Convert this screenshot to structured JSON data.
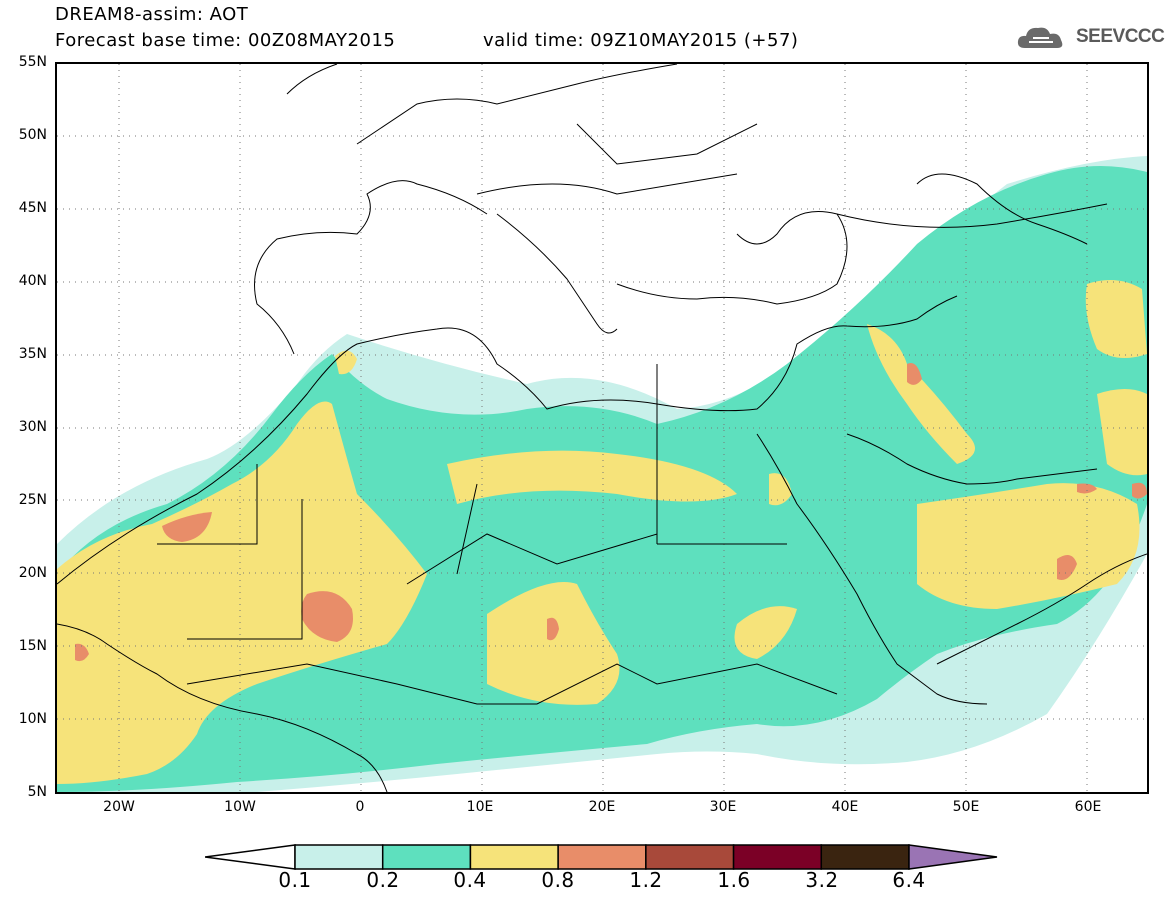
{
  "header": {
    "title": "DREAM8-assim: AOT",
    "base_time": "Forecast base time: 00Z08MAY2015",
    "valid_time": "valid time: 09Z10MAY2015 (+57)"
  },
  "logo": {
    "text": "SEEVCCC",
    "icon": "cloud-icon"
  },
  "map": {
    "projection": "lat-lon",
    "lon_range": [
      -25,
      65
    ],
    "lat_range": [
      5,
      55
    ],
    "lat_labels": [
      "55N",
      "50N",
      "45N",
      "40N",
      "35N",
      "30N",
      "25N",
      "20N",
      "15N",
      "10N",
      "5N"
    ],
    "lon_labels": [
      "20W",
      "10W",
      "0",
      "10E",
      "20E",
      "30E",
      "40E",
      "50E",
      "60E"
    ],
    "grid": "dotted"
  },
  "colorbar": {
    "labels": [
      "0.1",
      "0.2",
      "0.4",
      "0.8",
      "1.2",
      "1.6",
      "3.2",
      "6.4"
    ],
    "colors": [
      "#ffffff",
      "#c8f0ea",
      "#5ee0be",
      "#f6e37a",
      "#e88d69",
      "#a8493a",
      "#7b0026",
      "#3a2410",
      "#9a74b4"
    ]
  }
}
